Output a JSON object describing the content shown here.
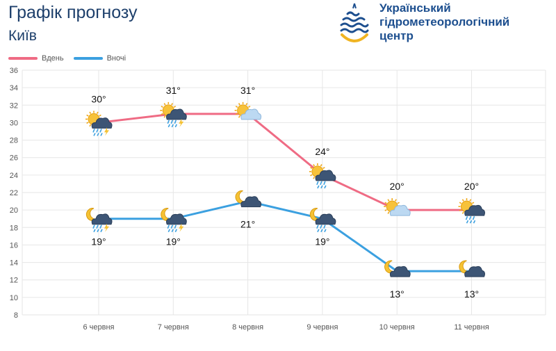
{
  "header": {
    "title": "Графік прогнозу",
    "city": "Київ"
  },
  "logo": {
    "name": "Український\nгідрометеорологічний\nцентр",
    "icon": "drop-logo-icon"
  },
  "colors": {
    "day": "#ef6b84",
    "night": "#3ba0e0",
    "grid": "#e6e6e6",
    "axis_text": "#555555",
    "brand_blue": "#1d4f8f",
    "brand_yellow": "#f0b422"
  },
  "chart_data": {
    "type": "line",
    "categories": [
      "6 червня",
      "7 червня",
      "8 червня",
      "9 червня",
      "10 червня",
      "11 червня"
    ],
    "ylim": [
      8,
      36
    ],
    "yticks": [
      8,
      10,
      12,
      14,
      16,
      18,
      20,
      22,
      24,
      26,
      28,
      30,
      32,
      34,
      36
    ],
    "grid": true,
    "legend_position": "top-left",
    "series": [
      {
        "name": "Вдень",
        "values": [
          30,
          31,
          31,
          24,
          20,
          20
        ],
        "labels": [
          "30°",
          "31°",
          "31°",
          "24°",
          "20°",
          "20°"
        ],
        "icons": [
          "sun-cloud-thunder-rain-icon",
          "sun-cloud-thunder-rain-icon",
          "sun-cloud-icon",
          "sun-cloud-rain-icon",
          "sun-cloud-icon",
          "sun-cloud-rain-icon"
        ]
      },
      {
        "name": "Вночі",
        "values": [
          19,
          19,
          21,
          19,
          13,
          13
        ],
        "labels": [
          "19°",
          "19°",
          "21°",
          "19°",
          "13°",
          "13°"
        ],
        "icons": [
          "moon-cloud-thunder-rain-icon",
          "moon-cloud-thunder-rain-icon",
          "moon-cloud-icon",
          "moon-cloud-rain-icon",
          "moon-cloud-icon",
          "moon-cloud-icon"
        ]
      }
    ]
  }
}
